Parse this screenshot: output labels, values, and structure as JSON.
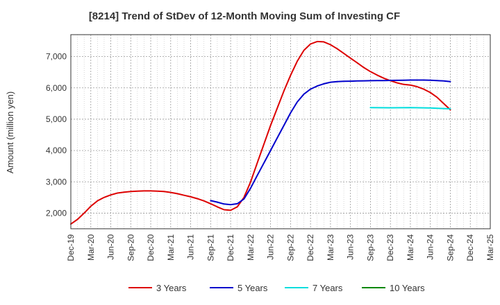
{
  "chart_data": {
    "type": "line",
    "title": "[8214]  Trend of StDev of 12-Month Moving Sum of Investing CF",
    "xlabel": "",
    "ylabel": "Amount (million yen)",
    "ylim": [
      1500,
      7700
    ],
    "yticks": [
      2000,
      3000,
      4000,
      5000,
      6000,
      7000
    ],
    "ytick_labels": [
      "2,000",
      "3,000",
      "4,000",
      "5,000",
      "6,000",
      "7,000"
    ],
    "xlim": [
      "2019-12",
      "2025-03"
    ],
    "xtick_labels": [
      "Dec-19",
      "Mar-20",
      "Jun-20",
      "Sep-20",
      "Dec-20",
      "Mar-21",
      "Jun-21",
      "Sep-21",
      "Dec-21",
      "Mar-22",
      "Jun-22",
      "Sep-22",
      "Dec-22",
      "Mar-23",
      "Jun-23",
      "Sep-23",
      "Dec-23",
      "Mar-24",
      "Jun-24",
      "Sep-24",
      "Dec-24",
      "Mar-25"
    ],
    "grid": true,
    "legend_position": "bottom",
    "series": [
      {
        "name": "3 Years",
        "color": "#dd0000",
        "points": [
          [
            "2019-12",
            1650
          ],
          [
            "2020-01",
            1800
          ],
          [
            "2020-02",
            2000
          ],
          [
            "2020-03",
            2220
          ],
          [
            "2020-04",
            2390
          ],
          [
            "2020-05",
            2500
          ],
          [
            "2020-06",
            2580
          ],
          [
            "2020-07",
            2640
          ],
          [
            "2020-08",
            2670
          ],
          [
            "2020-09",
            2690
          ],
          [
            "2020-10",
            2700
          ],
          [
            "2020-11",
            2710
          ],
          [
            "2020-12",
            2710
          ],
          [
            "2021-01",
            2700
          ],
          [
            "2021-02",
            2690
          ],
          [
            "2021-03",
            2660
          ],
          [
            "2021-04",
            2620
          ],
          [
            "2021-05",
            2570
          ],
          [
            "2021-06",
            2520
          ],
          [
            "2021-07",
            2460
          ],
          [
            "2021-08",
            2390
          ],
          [
            "2021-09",
            2300
          ],
          [
            "2021-10",
            2200
          ],
          [
            "2021-11",
            2110
          ],
          [
            "2021-12",
            2090
          ],
          [
            "2022-01",
            2200
          ],
          [
            "2022-02",
            2500
          ],
          [
            "2022-03",
            3000
          ],
          [
            "2022-04",
            3600
          ],
          [
            "2022-05",
            4200
          ],
          [
            "2022-06",
            4800
          ],
          [
            "2022-07",
            5350
          ],
          [
            "2022-08",
            5900
          ],
          [
            "2022-09",
            6400
          ],
          [
            "2022-10",
            6850
          ],
          [
            "2022-11",
            7200
          ],
          [
            "2022-12",
            7400
          ],
          [
            "2023-01",
            7480
          ],
          [
            "2023-02",
            7470
          ],
          [
            "2023-03",
            7380
          ],
          [
            "2023-04",
            7250
          ],
          [
            "2023-05",
            7100
          ],
          [
            "2023-06",
            6950
          ],
          [
            "2023-07",
            6800
          ],
          [
            "2023-08",
            6650
          ],
          [
            "2023-09",
            6520
          ],
          [
            "2023-10",
            6410
          ],
          [
            "2023-11",
            6310
          ],
          [
            "2023-12",
            6230
          ],
          [
            "2024-01",
            6160
          ],
          [
            "2024-02",
            6110
          ],
          [
            "2024-03",
            6090
          ],
          [
            "2024-04",
            6040
          ],
          [
            "2024-05",
            5960
          ],
          [
            "2024-06",
            5850
          ],
          [
            "2024-07",
            5700
          ],
          [
            "2024-08",
            5500
          ],
          [
            "2024-09",
            5300
          ]
        ]
      },
      {
        "name": "5 Years",
        "color": "#0000cc",
        "points": [
          [
            "2021-09",
            2400
          ],
          [
            "2021-10",
            2350
          ],
          [
            "2021-11",
            2290
          ],
          [
            "2021-12",
            2270
          ],
          [
            "2022-01",
            2300
          ],
          [
            "2022-02",
            2450
          ],
          [
            "2022-03",
            2800
          ],
          [
            "2022-04",
            3200
          ],
          [
            "2022-05",
            3600
          ],
          [
            "2022-06",
            4000
          ],
          [
            "2022-07",
            4400
          ],
          [
            "2022-08",
            4800
          ],
          [
            "2022-09",
            5200
          ],
          [
            "2022-10",
            5550
          ],
          [
            "2022-11",
            5800
          ],
          [
            "2022-12",
            5960
          ],
          [
            "2023-01",
            6060
          ],
          [
            "2023-02",
            6130
          ],
          [
            "2023-03",
            6180
          ],
          [
            "2023-04",
            6200
          ],
          [
            "2023-05",
            6210
          ],
          [
            "2023-06",
            6215
          ],
          [
            "2023-07",
            6220
          ],
          [
            "2023-08",
            6225
          ],
          [
            "2023-09",
            6230
          ],
          [
            "2023-10",
            6232
          ],
          [
            "2023-11",
            6235
          ],
          [
            "2023-12",
            6238
          ],
          [
            "2024-01",
            6240
          ],
          [
            "2024-02",
            6245
          ],
          [
            "2024-03",
            6250
          ],
          [
            "2024-04",
            6250
          ],
          [
            "2024-05",
            6250
          ],
          [
            "2024-06",
            6245
          ],
          [
            "2024-07",
            6235
          ],
          [
            "2024-08",
            6220
          ],
          [
            "2024-09",
            6200
          ]
        ]
      },
      {
        "name": "7 Years",
        "color": "#00dddd",
        "points": [
          [
            "2023-09",
            5370
          ],
          [
            "2023-12",
            5365
          ],
          [
            "2024-03",
            5370
          ],
          [
            "2024-06",
            5360
          ],
          [
            "2024-08",
            5340
          ],
          [
            "2024-09",
            5330
          ]
        ]
      },
      {
        "name": "10 Years",
        "color": "#008800",
        "points": []
      }
    ]
  }
}
